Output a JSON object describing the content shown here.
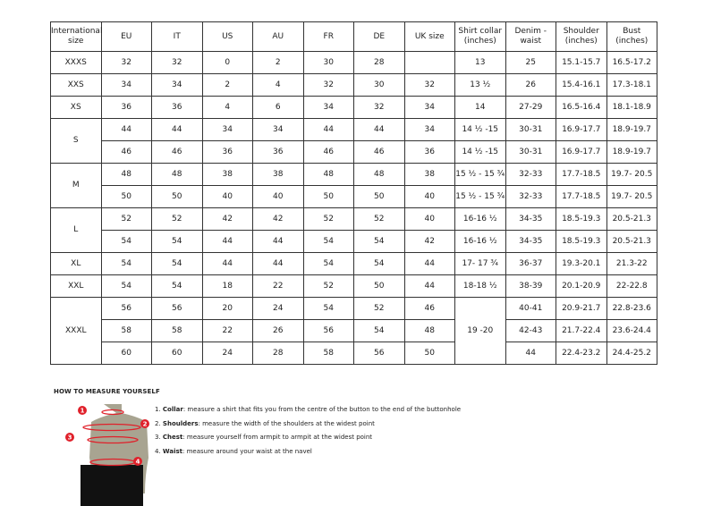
{
  "headers": [
    "International size",
    "EU",
    "IT",
    "US",
    "AU",
    "FR",
    "DE",
    "UK size",
    "Shirt collar (inches)",
    "Denim - waist",
    "Shoulder (inches)",
    "Bust (inches)"
  ],
  "groups": [
    {
      "size": "XXXS",
      "rows": [
        [
          "32",
          "32",
          "0",
          "2",
          "30",
          "28",
          "",
          "13",
          "25",
          "15.1-15.7",
          "16.5-17.2"
        ]
      ]
    },
    {
      "size": "XXS",
      "rows": [
        [
          "34",
          "34",
          "2",
          "4",
          "32",
          "30",
          "32",
          "13 ½",
          "26",
          "15.4-16.1",
          "17.3-18.1"
        ]
      ]
    },
    {
      "size": "XS",
      "rows": [
        [
          "36",
          "36",
          "4",
          "6",
          "34",
          "32",
          "34",
          "14",
          "27-29",
          "16.5-16.4",
          "18.1-18.9"
        ]
      ]
    },
    {
      "size": "S",
      "rows": [
        [
          "44",
          "44",
          "34",
          "34",
          "44",
          "44",
          "34",
          "14 ½ -15",
          "30-31",
          "16.9-17.7",
          "18.9-19.7"
        ],
        [
          "46",
          "46",
          "36",
          "36",
          "46",
          "46",
          "36",
          "14 ½ -15",
          "30-31",
          "16.9-17.7",
          "18.9-19.7"
        ]
      ]
    },
    {
      "size": "M",
      "rows": [
        [
          "48",
          "48",
          "38",
          "38",
          "48",
          "48",
          "38",
          "15 ½ - 15 ¾",
          "32-33",
          "17.7-18.5",
          "19.7- 20.5"
        ],
        [
          "50",
          "50",
          "40",
          "40",
          "50",
          "50",
          "40",
          "15 ½ - 15 ¾",
          "32-33",
          "17.7-18.5",
          "19.7- 20.5"
        ]
      ]
    },
    {
      "size": "L",
      "rows": [
        [
          "52",
          "52",
          "42",
          "42",
          "52",
          "52",
          "40",
          "16-16 ½",
          "34-35",
          "18.5-19.3",
          "20.5-21.3"
        ],
        [
          "54",
          "54",
          "44",
          "44",
          "54",
          "54",
          "42",
          "16-16 ½",
          "34-35",
          "18.5-19.3",
          "20.5-21.3"
        ]
      ]
    },
    {
      "size": "XL",
      "rows": [
        [
          "54",
          "54",
          "44",
          "44",
          "54",
          "54",
          "44",
          "17- 17 ¾",
          "36-37",
          "19.3-20.1",
          "21.3-22"
        ]
      ]
    },
    {
      "size": "XXL",
      "rows": [
        [
          "54",
          "54",
          "18",
          "22",
          "52",
          "50",
          "44",
          "18-18 ½",
          "38-39",
          "20.1-20.9",
          "22-22.8"
        ]
      ]
    },
    {
      "size": "XXXL",
      "rows": [
        [
          "56",
          "56",
          "20",
          "24",
          "54",
          "52",
          "46",
          "19 -20",
          "40-41",
          "20.9-21.7",
          "22.8-23.6"
        ],
        [
          "58",
          "58",
          "22",
          "26",
          "56",
          "54",
          "48",
          null,
          "42-43",
          "21.7-22.4",
          "23.6-24.4"
        ],
        [
          "60",
          "60",
          "24",
          "28",
          "58",
          "56",
          "50",
          null,
          "44",
          "22.4-23.2",
          "24.4-25.2"
        ]
      ]
    }
  ],
  "guide": {
    "title": "HOW TO MEASURE YOURSELF",
    "items": [
      {
        "num": "1.",
        "term": "Collar",
        "text": ": measure a shirt that fits you from the centre of the button to the end of the buttonhole"
      },
      {
        "num": "2.",
        "term": "Shoulders",
        "text": ": measure the width of the shoulders at the widest point"
      },
      {
        "num": "3.",
        "term": "Chest",
        "text": ": measure yourself from armpit to armpit at the widest point"
      },
      {
        "num": "4.",
        "term": "Waist",
        "text": ": measure around your waist at the navel"
      }
    ],
    "markers": [
      "1",
      "2",
      "3",
      "4"
    ],
    "colors": {
      "marker": "#e0202a",
      "torso": "#a8a491",
      "shorts": "#111111"
    }
  }
}
